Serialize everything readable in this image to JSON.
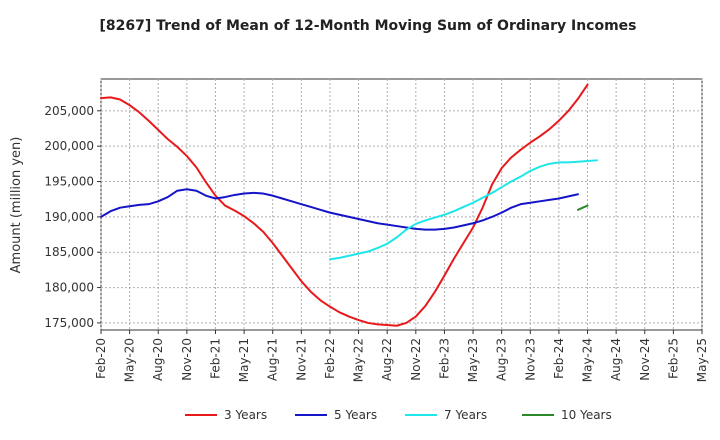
{
  "chart_data": {
    "type": "line",
    "title": "[8267]  Trend of Mean of 12-Month Moving Sum of Ordinary Incomes",
    "xlabel": "",
    "ylabel": "Amount (million yen)",
    "ylim": [
      174000,
      209500
    ],
    "yticks": [
      175000,
      180000,
      185000,
      190000,
      195000,
      200000,
      205000
    ],
    "ytick_labels": [
      "175,000",
      "180,000",
      "185,000",
      "190,000",
      "195,000",
      "200,000",
      "205,000"
    ],
    "xticks": [
      "Feb-20",
      "May-20",
      "Aug-20",
      "Nov-20",
      "Feb-21",
      "May-21",
      "Aug-21",
      "Nov-21",
      "Feb-22",
      "May-22",
      "Aug-22",
      "Nov-22",
      "Feb-23",
      "May-23",
      "Aug-23",
      "Nov-23",
      "Feb-24",
      "May-24",
      "Aug-24",
      "Nov-24",
      "Feb-25",
      "May-25"
    ],
    "x_start_index": 0,
    "x_end_index": 63,
    "grid": true,
    "legend_position": "bottom",
    "series": [
      {
        "name": "3 Years",
        "color": "#e8191b",
        "start_index": 0,
        "values": [
          206800,
          206900,
          206600,
          205800,
          204800,
          203600,
          202300,
          201000,
          199900,
          198600,
          197000,
          194900,
          193000,
          191600,
          190900,
          190100,
          189100,
          187900,
          186300,
          184500,
          182700,
          180900,
          179400,
          178200,
          177300,
          176500,
          175900,
          175400,
          175000,
          174800,
          174700,
          174600,
          175000,
          175900,
          177400,
          179400,
          181700,
          184100,
          186300,
          188500,
          191300,
          194600,
          196900,
          198400,
          199500,
          200500,
          201400,
          202400,
          203600,
          205000,
          206700,
          208700
        ]
      },
      {
        "name": "5 Years",
        "color": "#1414c8",
        "start_index": 0,
        "values": [
          190000,
          190800,
          191300,
          191500,
          191700,
          191800,
          192200,
          192800,
          193700,
          193900,
          193700,
          193000,
          192600,
          192800,
          193100,
          193300,
          193400,
          193300,
          193000,
          192600,
          192200,
          191800,
          191400,
          191000,
          190600,
          190300,
          190000,
          189700,
          189400,
          189100,
          188900,
          188700,
          188500,
          188300,
          188200,
          188200,
          188300,
          188500,
          188800,
          189100,
          189500,
          190000,
          190600,
          191300,
          191800,
          192000,
          192200,
          192400,
          192600,
          192900,
          193200
        ]
      },
      {
        "name": "7 Years",
        "color": "#1ee6eb",
        "start_index": 24,
        "values": [
          184000,
          184200,
          184500,
          184800,
          185100,
          185600,
          186200,
          187100,
          188200,
          189000,
          189500,
          189900,
          190300,
          190800,
          191400,
          192000,
          192700,
          193400,
          194200,
          195000,
          195700,
          196500,
          197100,
          197500,
          197700,
          197700,
          197800,
          197900,
          198000
        ]
      },
      {
        "name": "10 Years",
        "color": "#2a8a2a",
        "start_index": 50,
        "values": [
          191000,
          191600
        ]
      }
    ]
  }
}
